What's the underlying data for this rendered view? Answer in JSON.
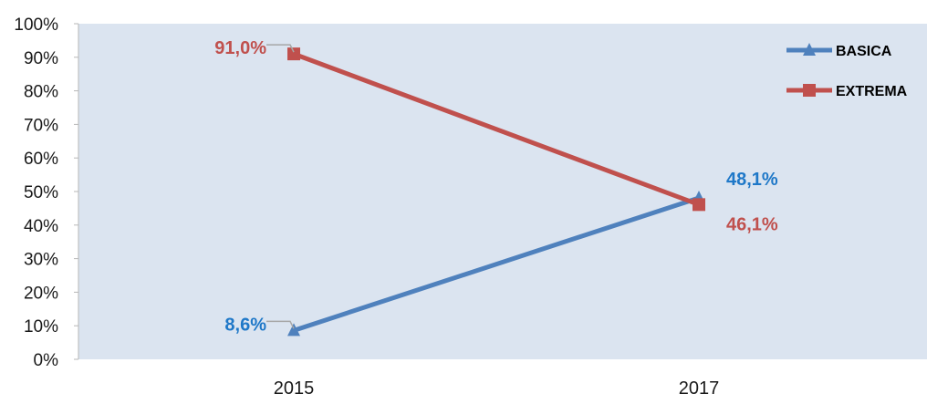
{
  "chart_data": {
    "type": "line",
    "title": "",
    "xlabel": "",
    "ylabel": "",
    "x": [
      "2015",
      "2017"
    ],
    "ylim": [
      0,
      100
    ],
    "y_ticks": [
      "0%",
      "10%",
      "20%",
      "30%",
      "40%",
      "50%",
      "60%",
      "70%",
      "80%",
      "90%",
      "100%"
    ],
    "grid": false,
    "legend_position": "top-right",
    "plot_background": "#dbe4f0",
    "series": [
      {
        "name": "BASICA",
        "values": [
          8.6,
          48.1
        ],
        "labels": [
          "8,6%",
          "48,1%"
        ],
        "color": "#4f81bd",
        "label_color": "#1f78c8",
        "marker": "triangle"
      },
      {
        "name": "EXTREMA",
        "values": [
          91.0,
          46.1
        ],
        "labels": [
          "91,0%",
          "46,1%"
        ],
        "color": "#c0504d",
        "label_color": "#c0504d",
        "marker": "square"
      }
    ]
  }
}
